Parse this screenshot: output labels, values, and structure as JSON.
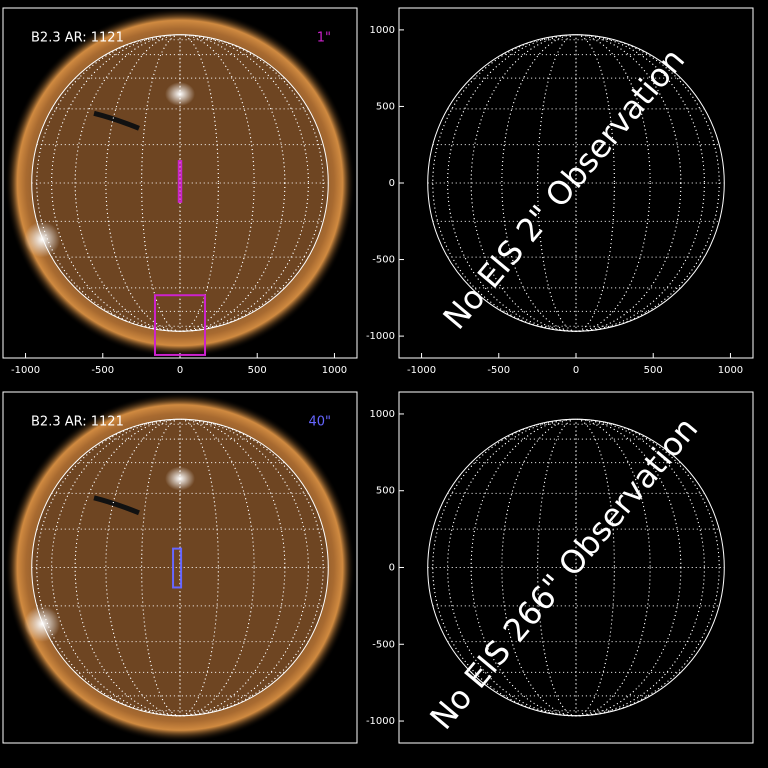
{
  "chart_data": [
    {
      "type": "image",
      "annotations": [
        "B2.3 AR: 1121",
        "1\""
      ],
      "xlim": [
        -1146,
        1146
      ],
      "ylim": [
        -1143,
        1143
      ],
      "xticks": [
        -1000,
        -500,
        0,
        500,
        1000
      ],
      "slit_color": "#cc22cc",
      "fov": [
        {
          "x": [
            -8,
            8
          ],
          "y": [
            -123,
            143
          ]
        },
        {
          "x": [
            -162,
            162
          ],
          "y": [
            -1123,
            -733
          ]
        }
      ]
    },
    {
      "type": "empty",
      "annotations": [
        "No EIS 2\" Observation"
      ],
      "xlim": [
        -1146,
        1146
      ],
      "ylim": [
        -1143,
        1143
      ],
      "xticks": [
        -1000,
        -500,
        0,
        500,
        1000
      ],
      "yticks": [
        -1000,
        -500,
        0,
        500,
        1000
      ]
    },
    {
      "type": "image",
      "annotations": [
        "B2.3 AR: 1121",
        "40\""
      ],
      "xlim": [
        -1146,
        1146
      ],
      "ylim": [
        -1143,
        1143
      ],
      "slit_color": "#6666ff",
      "fov": [
        {
          "x": [
            -45,
            7
          ],
          "y": [
            -130,
            123
          ]
        }
      ]
    },
    {
      "type": "empty",
      "annotations": [
        "No EIS 266\" Observation"
      ],
      "xlim": [
        -1146,
        1146
      ],
      "ylim": [
        -1143,
        1143
      ],
      "yticks": [
        -1000,
        -500,
        0,
        500,
        1000
      ]
    }
  ]
}
